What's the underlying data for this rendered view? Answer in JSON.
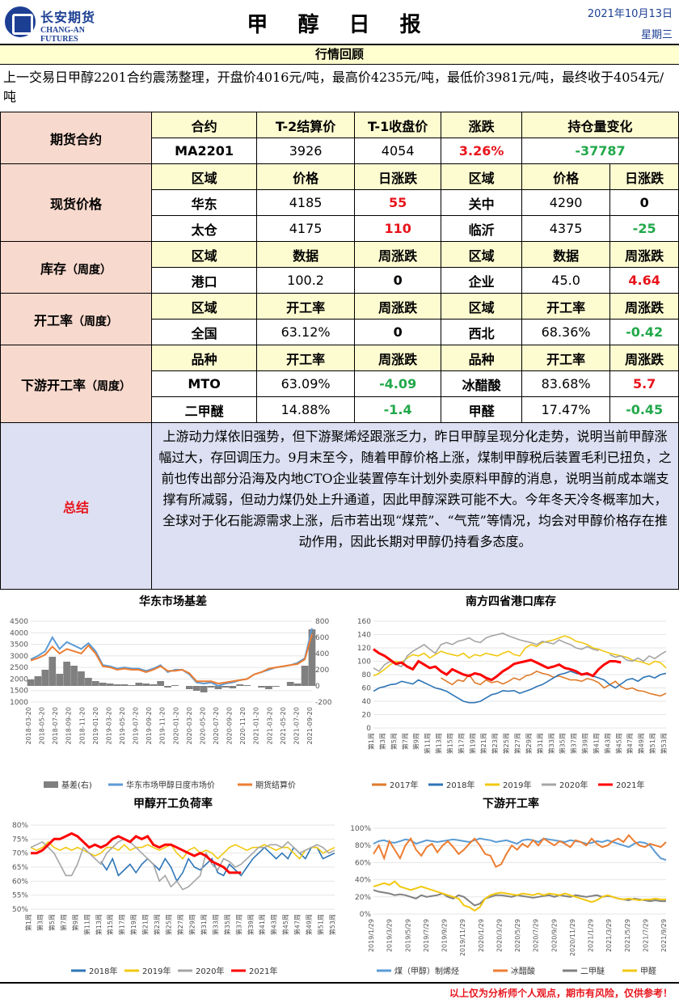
{
  "header": {
    "logo_cn": "长安期货",
    "logo_en": "CHANG-AN FUTURES",
    "title": "甲 醇 日 报",
    "date": "2021年10月13日",
    "weekday": "星期三"
  },
  "review": {
    "bar": "行情回顾",
    "text": "上一交易日甲醇2201合约震荡整理，开盘价4016元/吨，最高价4235元/吨，最低价3981元/吨，最终收于4054元/吨"
  },
  "futures": {
    "label": "期货合约",
    "h": [
      "合约",
      "T-2结算价",
      "T-1收盘价",
      "涨跌",
      "持仓量变化"
    ],
    "v": [
      "MA2201",
      "3926",
      "4054",
      "3.26%",
      "-37787"
    ]
  },
  "spot": {
    "label": "现货价格",
    "h": [
      "区域",
      "价格",
      "日涨跌",
      "区域",
      "价格",
      "日涨跌"
    ],
    "r1": [
      "华东",
      "4185",
      "55",
      "关中",
      "4290",
      "0"
    ],
    "r2": [
      "太仓",
      "4175",
      "110",
      "临沂",
      "4375",
      "-25"
    ]
  },
  "inventory": {
    "label": "库存",
    "unit": "（周度）",
    "h": [
      "区域",
      "数据",
      "周涨跌",
      "区域",
      "数据",
      "周涨跌"
    ],
    "r1": [
      "港口",
      "100.2",
      "0",
      "企业",
      "45.0",
      "4.64"
    ]
  },
  "operating": {
    "label": "开工率",
    "unit": "（周度）",
    "h": [
      "区域",
      "开工率",
      "周涨跌",
      "区域",
      "开工率",
      "周涨跌"
    ],
    "r1": [
      "全国",
      "63.12%",
      "0",
      "西北",
      "68.36%",
      "-0.42"
    ]
  },
  "downstream": {
    "label": "下游开工率",
    "unit": "（周度）",
    "h": [
      "品种",
      "开工率",
      "周涨跌",
      "品种",
      "开工率",
      "周涨跌"
    ],
    "r1": [
      "MTO",
      "63.09%",
      "-4.09",
      "冰醋酸",
      "83.68%",
      "5.7"
    ],
    "r2": [
      "二甲醚",
      "14.88%",
      "-1.4",
      "甲醛",
      "17.47%",
      "-0.45"
    ]
  },
  "summary": {
    "label": "总结",
    "text": "上游动力煤依旧强势，但下游聚烯烃跟涨乏力，昨日甲醇呈现分化走势，说明当前甲醇涨幅过大，存回调压力。9月末至今，随着甲醇价格上涨，煤制甲醇税后装置毛利已扭负，之前也传出部分沿海及内地CTO企业装置停车计划外卖原料甲醇的消息，说明当前成本端支撑有所减弱，但动力煤仍处上升通道，因此甲醇深跌可能不大。今年冬天冷冬概率加大，全球对于化石能源需求上涨，后市若出现“煤荒”、“气荒”等情况，均会对甲醇价格存在推动作用，因此长期对甲醇仍持看多态度。"
  },
  "colors": {
    "red": "#e8141c",
    "green": "#22a84a",
    "blue": "#1c3f94",
    "c2017": "#e07b2a",
    "c2018": "#2e75b6",
    "c2019": "#f2c811",
    "c2020": "#a5a5a5",
    "c2021": "#ff0000",
    "basis": "#808080",
    "spot": "#5b9bd5",
    "fut": "#ed7d31"
  },
  "chart_data": [
    {
      "type": "line",
      "title": "华东市场基差",
      "ylim": [
        1000,
        4500
      ],
      "y2lim": [
        -200,
        800
      ],
      "yticks": [
        "4500",
        "4000",
        "3500",
        "3000",
        "2500",
        "2000",
        "1500",
        "1000"
      ],
      "y2ticks": [
        "800",
        "600",
        "400",
        "200",
        "0",
        "-200"
      ],
      "xticks": [
        "2018-03-20",
        "2018-05-20",
        "2018-07-20",
        "2018-09-20",
        "2018-11-20",
        "2019-01-20",
        "2019-03-20",
        "2019-05-20",
        "2019-07-20",
        "2019-09-20",
        "2019-11-20",
        "2020-01-20",
        "2020-03-20",
        "2020-05-20",
        "2020-07-20",
        "2020-09-20",
        "2020-11-20",
        "2021-01-20",
        "2021-03-20",
        "2021-05-20",
        "2021-07-20",
        "2021-09-20"
      ],
      "series": [
        {
          "name": "基差(右)",
          "values": [
            80,
            120,
            200,
            360,
            150,
            300,
            250,
            180,
            100,
            60,
            40,
            30,
            20,
            20,
            10,
            40,
            30,
            20,
            60,
            -20,
            10,
            0,
            -40,
            -60,
            -80,
            -20,
            -40,
            -20,
            -30,
            20,
            10,
            0,
            -20,
            -40,
            -10,
            0,
            50,
            30,
            250,
            700
          ]
        },
        {
          "name": "华东市场甲醇日度市场价",
          "values": [
            2850,
            3000,
            3200,
            3800,
            3300,
            3600,
            3450,
            3300,
            3550,
            3200,
            2600,
            2550,
            2450,
            2500,
            2450,
            2450,
            2350,
            2450,
            2600,
            2300,
            2400,
            2400,
            2200,
            1850,
            1800,
            1850,
            1700,
            1800,
            1850,
            1950,
            2000,
            2200,
            2300,
            2400,
            2500,
            2550,
            2600,
            2700,
            2900,
            4200
          ]
        },
        {
          "name": "期货结算价",
          "values": [
            2800,
            2900,
            3050,
            3400,
            3100,
            3300,
            3200,
            3100,
            3450,
            3100,
            2550,
            2500,
            2400,
            2450,
            2400,
            2400,
            2300,
            2400,
            2550,
            2350,
            2350,
            2400,
            2250,
            1900,
            1900,
            1900,
            1800,
            1850,
            1900,
            1950,
            2000,
            2200,
            2300,
            2450,
            2500,
            2550,
            2600,
            2650,
            2850,
            3950
          ]
        }
      ]
    },
    {
      "type": "line",
      "title": "南方四省港口库存",
      "ylim": [
        0,
        160
      ],
      "yticks": [
        "160",
        "140",
        "120",
        "100",
        "80",
        "60",
        "40",
        "20",
        "0"
      ],
      "xticks": [
        "第1周",
        "第3周",
        "第5周",
        "第7周",
        "第9周",
        "第11周",
        "第13周",
        "第15周",
        "第17周",
        "第19周",
        "第21周",
        "第23周",
        "第25周",
        "第27周",
        "第29周",
        "第31周",
        "第33周",
        "第35周",
        "第37周",
        "第39周",
        "第41周",
        "第43周",
        "第45周",
        "第47周",
        "第49周",
        "第51周",
        "第53周"
      ],
      "series": [
        {
          "name": "2017年",
          "values": [
            null,
            null,
            null,
            null,
            null,
            null,
            null,
            null,
            null,
            null,
            null,
            null,
            75,
            70,
            65,
            72,
            70,
            80,
            68,
            65,
            72,
            68,
            70,
            66,
            70,
            75,
            72,
            78,
            80,
            85,
            82,
            80,
            76,
            78,
            75,
            72,
            72,
            70,
            74,
            72,
            68,
            60,
            65,
            70,
            62,
            58,
            60,
            56,
            55,
            52,
            50,
            48,
            52
          ]
        },
        {
          "name": "2018年",
          "values": [
            55,
            60,
            62,
            65,
            66,
            70,
            68,
            66,
            72,
            68,
            64,
            60,
            58,
            55,
            50,
            45,
            40,
            38,
            38,
            40,
            45,
            50,
            52,
            56,
            55,
            56,
            52,
            55,
            58,
            62,
            65,
            70,
            75,
            80,
            82,
            85,
            82,
            80,
            80,
            78,
            75,
            72,
            65,
            60,
            66,
            72,
            74,
            70,
            76,
            78,
            75,
            80,
            82
          ]
        },
        {
          "name": "2019年",
          "values": [
            78,
            82,
            88,
            95,
            100,
            98,
            105,
            110,
            108,
            112,
            105,
            110,
            115,
            112,
            110,
            108,
            112,
            105,
            110,
            108,
            112,
            110,
            108,
            112,
            115,
            110,
            108,
            120,
            125,
            122,
            128,
            130,
            132,
            135,
            138,
            135,
            130,
            128,
            125,
            120,
            118,
            115,
            112,
            110,
            108,
            106,
            102,
            100,
            98,
            95,
            100,
            98,
            90
          ]
        },
        {
          "name": "2020年",
          "values": [
            90,
            85,
            95,
            100,
            95,
            92,
            108,
            115,
            120,
            125,
            118,
            112,
            125,
            128,
            125,
            130,
            132,
            135,
            130,
            128,
            135,
            138,
            140,
            142,
            138,
            135,
            132,
            130,
            128,
            125,
            130,
            128,
            126,
            132,
            128,
            125,
            120,
            118,
            122,
            118,
            116,
            null,
            110,
            106,
            108,
            102,
            100,
            105,
            100,
            108,
            104,
            110,
            115
          ]
        },
        {
          "name": "2021年",
          "values": [
            118,
            112,
            108,
            102,
            96,
            98,
            92,
            88,
            100,
            95,
            90,
            92,
            85,
            80,
            88,
            84,
            80,
            78,
            82,
            80,
            75,
            72,
            78,
            85,
            90,
            96,
            98,
            100,
            102,
            98,
            94,
            90,
            92,
            95,
            90,
            88,
            85,
            80,
            82,
            78,
            88,
            95,
            100,
            100,
            98
          ]
        }
      ]
    },
    {
      "type": "line",
      "title": "甲醇开工负荷率",
      "ylim": [
        50,
        80
      ],
      "yticks": [
        "80%",
        "75%",
        "70%",
        "65%",
        "60%",
        "55%",
        "50%"
      ],
      "xticks": [
        "第1周",
        "第3周",
        "第5周",
        "第7周",
        "第9周",
        "第11周",
        "第13周",
        "第15周",
        "第17周",
        "第19周",
        "第21周",
        "第23周",
        "第25周",
        "第27周",
        "第29周",
        "第31周",
        "第33周",
        "第35周",
        "第37周",
        "第39周",
        "第41周",
        "第43周",
        "第45周",
        "第47周",
        "第49周",
        "第51周",
        "第53周"
      ],
      "series": [
        {
          "name": "2018年",
          "values": [
            null,
            null,
            null,
            null,
            null,
            null,
            null,
            null,
            null,
            null,
            null,
            null,
            67,
            64,
            68,
            62,
            64,
            66,
            63,
            66,
            68,
            66,
            64,
            68,
            65,
            60,
            63,
            68,
            65,
            64,
            66,
            68,
            63,
            62,
            66,
            64,
            62,
            65,
            68,
            70,
            72,
            70,
            68,
            70,
            68,
            72,
            70,
            68,
            72,
            72,
            68,
            69,
            70
          ]
        },
        {
          "name": "2019年",
          "values": [
            72,
            71,
            72,
            74,
            72,
            71,
            72,
            71,
            72,
            71,
            70,
            69,
            70,
            72,
            72,
            71,
            73,
            71,
            72,
            72,
            73,
            72,
            71,
            72,
            73,
            70,
            68,
            71,
            72,
            70,
            71,
            70,
            68,
            70,
            72,
            73,
            72,
            71,
            72,
            72,
            73,
            72,
            71,
            72,
            72,
            70,
            68,
            71,
            72,
            72,
            70,
            71,
            72
          ]
        },
        {
          "name": "2020年",
          "values": [
            72,
            73,
            74,
            72,
            70,
            66,
            62,
            62,
            66,
            72,
            70,
            68,
            66,
            70,
            72,
            74,
            75,
            74,
            72,
            70,
            68,
            66,
            60,
            62,
            58,
            60,
            57,
            58,
            60,
            62,
            70,
            66,
            64,
            68,
            67,
            65,
            66,
            68,
            70,
            72,
            72,
            73,
            73,
            72,
            74,
            72,
            70,
            71,
            72,
            73,
            72,
            70,
            71
          ]
        },
        {
          "name": "2021年",
          "values": [
            70,
            70,
            71,
            73,
            75,
            75,
            76,
            77,
            76,
            74,
            72,
            73,
            72,
            73,
            75,
            76,
            75,
            74,
            76,
            75,
            76,
            73,
            72,
            73,
            73,
            72,
            71,
            70,
            69,
            70,
            69,
            67,
            66,
            65,
            63,
            63,
            63
          ]
        }
      ]
    },
    {
      "type": "line",
      "title": "下游开工率",
      "ylim": [
        0,
        100
      ],
      "yticks": [
        "100%",
        "80%",
        "60%",
        "40%",
        "20%",
        "0%"
      ],
      "xticks": [
        "2019/1/29",
        "2019/3/29",
        "2019/5/29",
        "2019/7/29",
        "2019/9/29",
        "2019/11/29",
        "2020/1/29",
        "2020/3/29",
        "2020/5/29",
        "2020/7/29",
        "2020/9/29",
        "2020/11/29",
        "2021/1/29",
        "2021/3/29",
        "2021/5/29",
        "2021/7/29",
        "2021/9/29"
      ],
      "series": [
        {
          "name": "煤（甲醇）制烯烃",
          "values": [
            82,
            85,
            86,
            84,
            83,
            85,
            87,
            86,
            82,
            84,
            86,
            85,
            84,
            85,
            86,
            87,
            86,
            85,
            84,
            86,
            88,
            87,
            86,
            84,
            85,
            86,
            84,
            82,
            86,
            87,
            86,
            84,
            88,
            87,
            86,
            85,
            84,
            86,
            85,
            84,
            82,
            83,
            85,
            84,
            86,
            84,
            82,
            80,
            78,
            82,
            84,
            83,
            80,
            72,
            65,
            63
          ]
        },
        {
          "name": "冰醋酸",
          "values": [
            70,
            80,
            65,
            85,
            75,
            65,
            80,
            88,
            75,
            68,
            78,
            82,
            72,
            80,
            85,
            78,
            70,
            75,
            82,
            88,
            80,
            70,
            68,
            55,
            58,
            70,
            80,
            75,
            82,
            78,
            86,
            80,
            88,
            84,
            80,
            85,
            82,
            78,
            86,
            84,
            80,
            88,
            82,
            78,
            80,
            85,
            88,
            84,
            92,
            85,
            80,
            78,
            82,
            80,
            78,
            84
          ]
        },
        {
          "name": "二甲醚",
          "values": [
            28,
            26,
            25,
            24,
            22,
            23,
            22,
            20,
            18,
            22,
            20,
            21,
            22,
            24,
            20,
            18,
            22,
            20,
            15,
            10,
            12,
            18,
            20,
            22,
            22,
            21,
            20,
            22,
            21,
            20,
            19,
            20,
            21,
            22,
            20,
            22,
            21,
            20,
            22,
            21,
            20,
            21,
            22,
            20,
            21,
            20,
            18,
            17,
            16,
            18,
            17,
            16,
            15,
            16,
            15,
            15
          ]
        },
        {
          "name": "甲醛",
          "values": [
            32,
            34,
            36,
            34,
            38,
            32,
            30,
            28,
            30,
            32,
            30,
            28,
            26,
            24,
            22,
            20,
            18,
            10,
            8,
            4,
            8,
            18,
            22,
            24,
            25,
            24,
            23,
            22,
            24,
            23,
            22,
            24,
            22,
            24,
            23,
            22,
            24,
            22,
            20,
            18,
            16,
            14,
            16,
            20,
            22,
            20,
            18,
            17,
            18,
            17,
            16,
            17,
            17,
            18,
            17,
            17
          ]
        }
      ]
    }
  ],
  "footer": "以上仅为分析师个人观点，期市有风险，仅供参考！"
}
